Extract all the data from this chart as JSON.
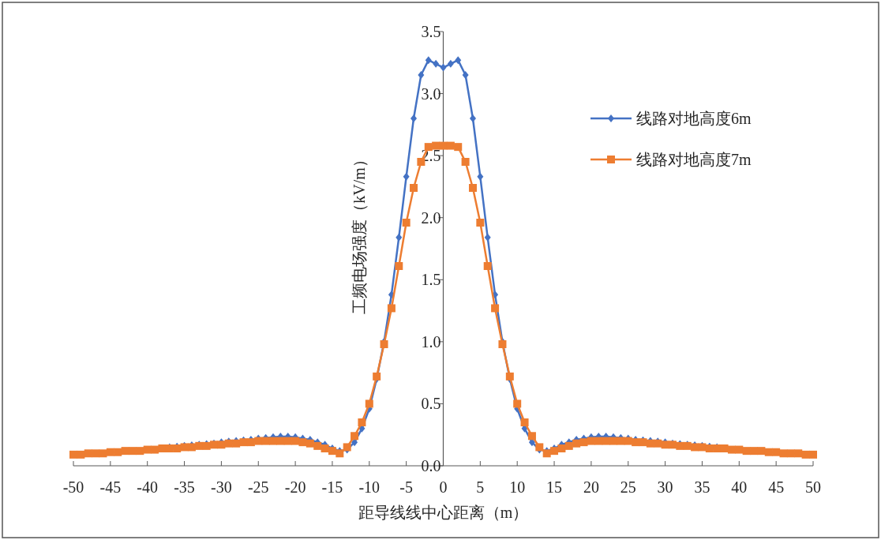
{
  "chart_data": {
    "type": "line",
    "xlabel": "距导线线中心距离（m）",
    "ylabel": "工频电场强度（kV/m）",
    "xlim": [
      -50,
      50
    ],
    "xticks": [
      -50,
      -45,
      -40,
      -35,
      -30,
      -25,
      -20,
      -15,
      -10,
      -5,
      0,
      5,
      10,
      15,
      20,
      25,
      30,
      35,
      40,
      45,
      50
    ],
    "ylim": [
      0,
      3.5
    ],
    "yticks": [
      {
        "value": 0,
        "label": "0.0"
      },
      {
        "value": 0.5,
        "label": "0.5"
      },
      {
        "value": 1,
        "label": "1.0"
      },
      {
        "value": 1.5,
        "label": "1.5"
      },
      {
        "value": 2,
        "label": "2.0"
      },
      {
        "value": 2.5,
        "label": "2.5"
      },
      {
        "value": 3,
        "label": "3.0"
      },
      {
        "value": 3.5,
        "label": "3.5"
      }
    ],
    "grid": false,
    "legend": "top right",
    "line_style": "solid",
    "x": [
      -50,
      -49,
      -48,
      -47,
      -46,
      -45,
      -44,
      -43,
      -42,
      -41,
      -40,
      -39,
      -38,
      -37,
      -36,
      -35,
      -34,
      -33,
      -32,
      -31,
      -30,
      -29,
      -28,
      -27,
      -26,
      -25,
      -24,
      -23,
      -22,
      -21,
      -20,
      -19,
      -18,
      -17,
      -16,
      -15,
      -14,
      -13,
      -12,
      -11,
      -10,
      -9,
      -8,
      -7,
      -6,
      -5,
      -4,
      -3,
      -2,
      -1,
      0,
      1,
      2,
      3,
      4,
      5,
      6,
      7,
      8,
      9,
      10,
      11,
      12,
      13,
      14,
      15,
      16,
      17,
      18,
      19,
      20,
      21,
      22,
      23,
      24,
      25,
      26,
      27,
      28,
      29,
      30,
      31,
      32,
      33,
      34,
      35,
      36,
      37,
      38,
      39,
      40,
      41,
      42,
      43,
      44,
      45,
      46,
      47,
      48,
      49,
      50
    ],
    "series": [
      {
        "name": "线路对地高度6m",
        "color": "#4472c4",
        "marker": "diamond",
        "values": [
          null,
          null,
          null,
          null,
          null,
          null,
          null,
          null,
          null,
          null,
          null,
          null,
          null,
          0.15,
          0.155,
          0.16,
          0.165,
          0.17,
          0.175,
          0.18,
          0.19,
          0.195,
          0.2,
          0.205,
          0.21,
          0.22,
          0.225,
          0.23,
          0.235,
          0.235,
          0.23,
          0.22,
          0.21,
          0.19,
          0.17,
          0.14,
          0.12,
          0.13,
          0.19,
          0.3,
          0.46,
          0.7,
          1.0,
          1.38,
          1.84,
          2.33,
          2.8,
          3.15,
          3.27,
          3.24,
          3.21,
          3.24,
          3.27,
          3.15,
          2.8,
          2.33,
          1.84,
          1.38,
          1.0,
          0.7,
          0.46,
          0.3,
          0.19,
          0.13,
          0.12,
          0.14,
          0.17,
          0.19,
          0.21,
          0.22,
          0.23,
          0.235,
          0.235,
          0.23,
          0.225,
          0.22,
          0.21,
          0.205,
          0.2,
          0.195,
          0.19,
          0.18,
          0.175,
          0.17,
          0.165,
          0.16,
          0.155,
          0.15,
          null,
          null,
          null,
          null,
          null,
          null,
          null,
          null,
          null,
          null,
          null,
          null,
          null
        ]
      },
      {
        "name": "线路对地高度7m",
        "color": "#ed7d31",
        "marker": "square",
        "values": [
          0.09,
          0.09,
          0.1,
          0.1,
          0.1,
          0.11,
          0.11,
          0.12,
          0.12,
          0.12,
          0.13,
          0.13,
          0.14,
          0.14,
          0.14,
          0.15,
          0.15,
          0.16,
          0.16,
          0.17,
          0.17,
          0.18,
          0.18,
          0.19,
          0.19,
          0.2,
          0.2,
          0.2,
          0.2,
          0.2,
          0.2,
          0.19,
          0.18,
          0.16,
          0.14,
          0.12,
          0.1,
          0.15,
          0.24,
          0.35,
          0.5,
          0.72,
          0.98,
          1.27,
          1.61,
          1.96,
          2.24,
          2.45,
          2.57,
          2.58,
          2.58,
          2.58,
          2.57,
          2.45,
          2.24,
          1.96,
          1.61,
          1.27,
          0.98,
          0.72,
          0.5,
          0.35,
          0.24,
          0.15,
          0.1,
          0.12,
          0.14,
          0.16,
          0.18,
          0.19,
          0.2,
          0.2,
          0.2,
          0.2,
          0.2,
          0.2,
          0.19,
          0.19,
          0.18,
          0.18,
          0.17,
          0.17,
          0.16,
          0.16,
          0.15,
          0.15,
          0.14,
          0.14,
          0.14,
          0.13,
          0.13,
          0.12,
          0.12,
          0.12,
          0.11,
          0.11,
          0.1,
          0.1,
          0.1,
          0.09,
          0.09
        ]
      }
    ]
  }
}
